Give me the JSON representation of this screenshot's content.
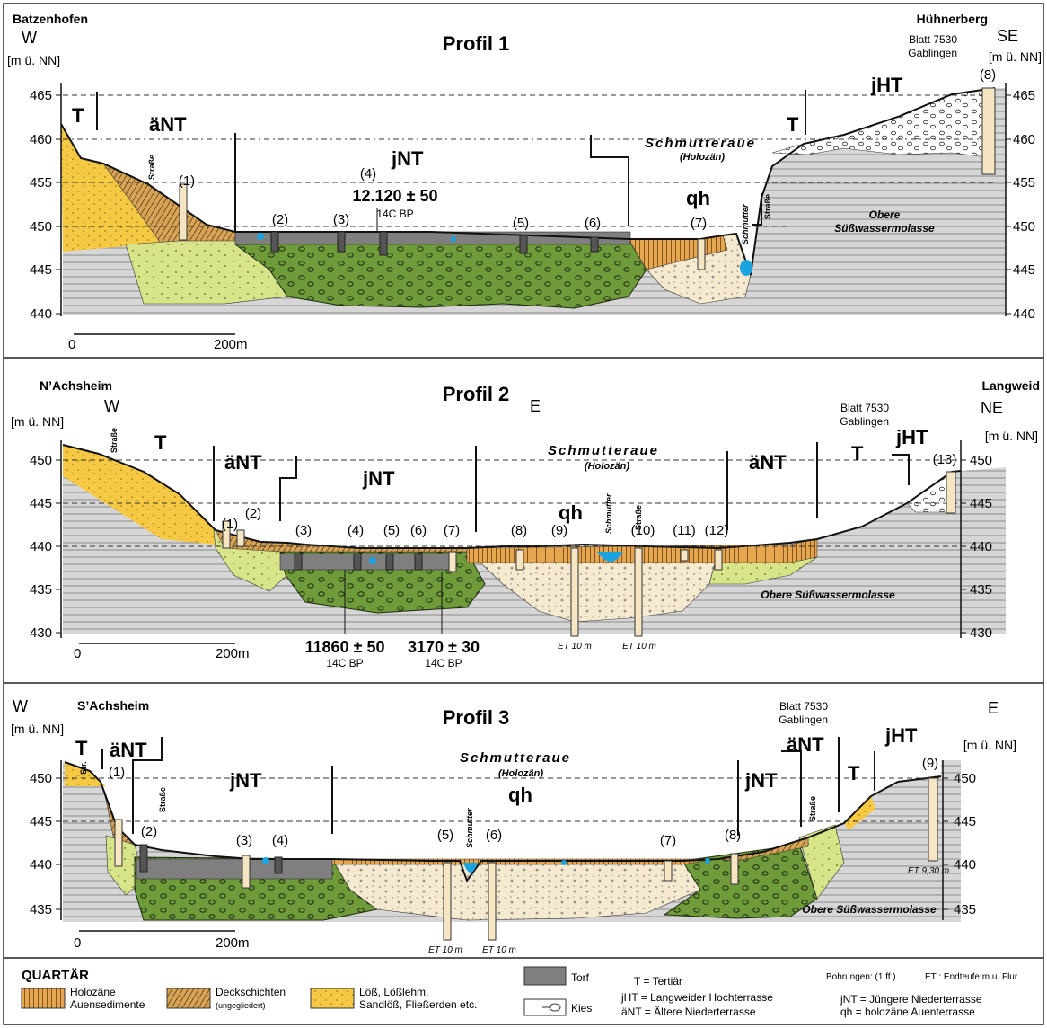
{
  "colors": {
    "holocene": "#e6a64f",
    "cover": "#d7a457",
    "loess": "#f6c944",
    "loess_pale": "#d8e48a",
    "gravel_green": "#6f9b3b",
    "gravel_light": "#f5ead0",
    "peat": "#7f7f7f",
    "bedrock": "#d4d4d4",
    "water": "#1aa3de"
  },
  "profiles": [
    {
      "title": "Profil 1",
      "left_place": "Batzenhofen",
      "left_dir": "W",
      "right_place": "Hühnerberg",
      "right_dir": "SE",
      "sheet": [
        "Blatt 7530",
        "Gablingen"
      ],
      "unit": "[m ü. NN]",
      "ticks": [
        "465",
        "460",
        "455",
        "450",
        "445",
        "440"
      ],
      "scale": [
        "0",
        "200m"
      ],
      "terraces": [
        "T",
        "äNT",
        "jNT",
        "T",
        "jHT",
        "qh"
      ],
      "aue": [
        "Schmutteraue",
        "(Holozän)"
      ],
      "boreholes": [
        "(1)",
        "(2)",
        "(3)",
        "(4)",
        "(5)",
        "(6)",
        "(7)",
        "(8)"
      ],
      "dates": [
        {
          "value": "12.120 ± 50",
          "label": "14C BP"
        }
      ],
      "notes": [
        "Straße",
        "Straße",
        "Schmutter",
        "Obere",
        "Süßwassermolasse"
      ]
    },
    {
      "title": "Profil 2",
      "left_place": "N’Achsheim",
      "left_dir": "W",
      "mid_dir": "E",
      "right_place": "Langweid",
      "right_dir": "NE",
      "sheet": [
        "Blatt 7530",
        "Gablingen"
      ],
      "unit": "[m ü. NN]",
      "ticks": [
        "450",
        "445",
        "440",
        "435",
        "430"
      ],
      "scale": [
        "0",
        "200m"
      ],
      "terraces": [
        "T",
        "äNT",
        "jNT",
        "qh",
        "äNT",
        "T",
        "jHT"
      ],
      "aue": [
        "Schmutteraue",
        "(Holozän)"
      ],
      "boreholes": [
        "(1)",
        "(2)",
        "(3)",
        "(4)",
        "(5)",
        "(6)",
        "(7)",
        "(8)",
        "(9)",
        "(10)",
        "(11)",
        "(12)",
        "(13)"
      ],
      "dates": [
        {
          "value": "11860 ± 50",
          "label": "14C BP"
        },
        {
          "value": "3170 ± 30",
          "label": "14C BP"
        }
      ],
      "notes": [
        "Straße",
        "Schmutter",
        "Straße",
        "ET 10 m",
        "ET 10 m",
        "Obere Süßwassermolasse"
      ]
    },
    {
      "title": "Profil 3",
      "left_place": "S’Achsheim",
      "left_dir": "W",
      "right_dir": "E",
      "sheet": [
        "Blatt 7530",
        "Gablingen"
      ],
      "unit": "[m ü. NN]",
      "ticks": [
        "450",
        "445",
        "440",
        "435"
      ],
      "scale": [
        "0",
        "200m"
      ],
      "terraces": [
        "T",
        "äNT",
        "jNT",
        "qh",
        "jNT",
        "äNT",
        "T",
        "jHT"
      ],
      "aue": [
        "Schmutteraue",
        "(Holozän)"
      ],
      "boreholes": [
        "(1)",
        "(2)",
        "(3)",
        "(4)",
        "(5)",
        "(6)",
        "(7)",
        "(8)",
        "(9)"
      ],
      "notes": [
        "Str.",
        "Straße",
        "Schmutter",
        "Straße",
        "ET 10 m",
        "ET 10 m",
        "ET 9,30 m",
        "Obere Süßwassermolasse"
      ]
    }
  ],
  "legend": {
    "heading": "QUARTÄR",
    "items": [
      {
        "label": [
          "Holozäne",
          "Auensedimente"
        ]
      },
      {
        "label": [
          "Deckschichten",
          "(ungegliedert)"
        ]
      },
      {
        "label": [
          "Löß, Lößlehm,",
          "Sandlöß, Fließerden etc."
        ]
      },
      {
        "label": [
          "Torf"
        ]
      },
      {
        "label": [
          "Kies"
        ]
      }
    ],
    "abbr": [
      "T = Tertiär",
      "jHT = Langweider Hochterrasse",
      "äNT = Ältere Niederterrasse",
      "jNT = Jüngere Niederterrasse",
      "qh  = holozäne Auenterrasse"
    ],
    "boreholes_note": "Bohrungen: (1 ff.)",
    "et_note": "ET  : Endteufe m u. Flur"
  }
}
